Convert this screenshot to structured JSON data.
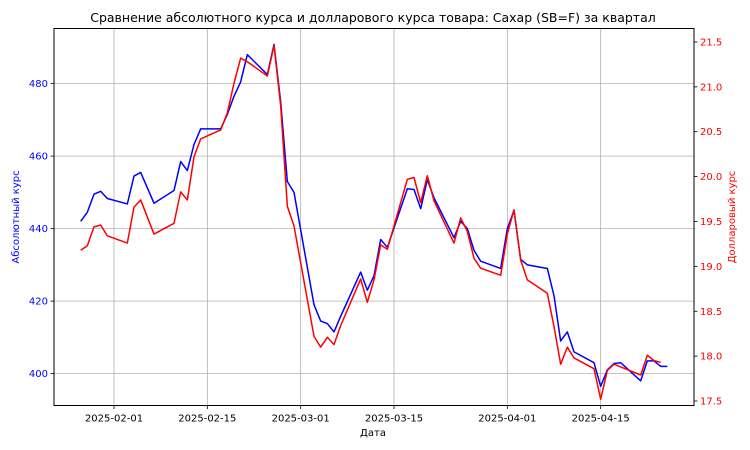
{
  "chart_data": {
    "type": "line",
    "title": "Сравнение абсолютного курса и долларового курса товара: Сахар (SB=F) за квартал",
    "xlabel": "Дата",
    "ylabel_left": "Абсолютный курс",
    "ylabel_right": "Долларовый курс",
    "x_ticks": [
      "2025-02-01",
      "2025-02-15",
      "2025-03-01",
      "2025-03-15",
      "2025-04-01",
      "2025-04-15"
    ],
    "y_left_ticks": [
      400,
      420,
      440,
      460,
      480
    ],
    "y_right_ticks": [
      17.5,
      18.0,
      18.5,
      19.0,
      19.5,
      20.0,
      20.5,
      21.0,
      21.5
    ],
    "x_range": [
      "2025-01-23",
      "2025-04-29"
    ],
    "ylim_left": [
      391.2,
      495.2
    ],
    "ylim_right": [
      17.45,
      21.65
    ],
    "grid": true,
    "legend": "none",
    "colors": {
      "left": "#0000ff",
      "right": "#ff0000"
    },
    "series": [
      {
        "axis": "left",
        "color": "#0000ff",
        "points": [
          [
            "2025-01-27",
            442
          ],
          [
            "2025-01-28",
            444.5
          ],
          [
            "2025-01-29",
            449.5
          ],
          [
            "2025-01-30",
            450.3
          ],
          [
            "2025-01-31",
            448.3
          ],
          [
            "2025-02-03",
            446.8
          ],
          [
            "2025-02-04",
            454.5
          ],
          [
            "2025-02-05",
            455.5
          ],
          [
            "2025-02-07",
            447
          ],
          [
            "2025-02-10",
            450.5
          ],
          [
            "2025-02-11",
            458.5
          ],
          [
            "2025-02-12",
            456
          ],
          [
            "2025-02-13",
            463.2
          ],
          [
            "2025-02-14",
            467.5
          ],
          [
            "2025-02-17",
            467.5
          ],
          [
            "2025-02-18",
            471.5
          ],
          [
            "2025-02-19",
            476.5
          ],
          [
            "2025-02-20",
            480.5
          ],
          [
            "2025-02-21",
            488
          ],
          [
            "2025-02-24",
            482.5
          ],
          [
            "2025-02-25",
            490.8
          ],
          [
            "2025-02-26",
            475
          ],
          [
            "2025-02-27",
            453
          ],
          [
            "2025-02-28",
            450
          ],
          [
            "2025-03-03",
            419
          ],
          [
            "2025-03-04",
            414.5
          ],
          [
            "2025-03-05",
            413.8
          ],
          [
            "2025-03-06",
            411.5
          ],
          [
            "2025-03-07",
            415.8
          ],
          [
            "2025-03-10",
            428
          ],
          [
            "2025-03-11",
            423
          ],
          [
            "2025-03-12",
            427
          ],
          [
            "2025-03-13",
            437
          ],
          [
            "2025-03-14",
            434.8
          ],
          [
            "2025-03-17",
            451
          ],
          [
            "2025-03-18",
            450.8
          ],
          [
            "2025-03-19",
            445.5
          ],
          [
            "2025-03-20",
            453.5
          ],
          [
            "2025-03-21",
            448.5
          ],
          [
            "2025-03-24",
            437.5
          ],
          [
            "2025-03-25",
            442
          ],
          [
            "2025-03-26",
            440
          ],
          [
            "2025-03-27",
            434
          ],
          [
            "2025-03-28",
            431
          ],
          [
            "2025-03-31",
            429
          ],
          [
            "2025-04-01",
            440
          ],
          [
            "2025-04-02",
            445
          ],
          [
            "2025-04-03",
            431.5
          ],
          [
            "2025-04-04",
            430
          ],
          [
            "2025-04-07",
            429
          ],
          [
            "2025-04-08",
            421.5
          ],
          [
            "2025-04-09",
            409
          ],
          [
            "2025-04-10",
            411.5
          ],
          [
            "2025-04-11",
            406
          ],
          [
            "2025-04-14",
            403
          ],
          [
            "2025-04-15",
            396.5
          ],
          [
            "2025-04-16",
            401
          ],
          [
            "2025-04-17",
            402.8
          ],
          [
            "2025-04-18",
            403
          ],
          [
            "2025-04-21",
            398
          ],
          [
            "2025-04-22",
            403.5
          ],
          [
            "2025-04-23",
            403.5
          ],
          [
            "2025-04-24",
            402
          ],
          [
            "2025-04-25",
            402
          ]
        ]
      },
      {
        "axis": "right",
        "color": "#ff0000",
        "points": [
          [
            "2025-01-27",
            19.18
          ],
          [
            "2025-01-28",
            19.23
          ],
          [
            "2025-01-29",
            19.44
          ],
          [
            "2025-01-30",
            19.46
          ],
          [
            "2025-01-31",
            19.34
          ],
          [
            "2025-02-03",
            19.26
          ],
          [
            "2025-02-04",
            19.66
          ],
          [
            "2025-02-05",
            19.74
          ],
          [
            "2025-02-07",
            19.36
          ],
          [
            "2025-02-10",
            19.48
          ],
          [
            "2025-02-11",
            19.83
          ],
          [
            "2025-02-12",
            19.74
          ],
          [
            "2025-02-13",
            20.22
          ],
          [
            "2025-02-14",
            20.42
          ],
          [
            "2025-02-17",
            20.52
          ],
          [
            "2025-02-18",
            20.71
          ],
          [
            "2025-02-19",
            21.04
          ],
          [
            "2025-02-20",
            21.32
          ],
          [
            "2025-02-21",
            21.28
          ],
          [
            "2025-02-24",
            21.12
          ],
          [
            "2025-02-25",
            21.46
          ],
          [
            "2025-02-26",
            20.79
          ],
          [
            "2025-02-27",
            19.67
          ],
          [
            "2025-02-28",
            19.45
          ],
          [
            "2025-03-03",
            18.22
          ],
          [
            "2025-03-04",
            18.1
          ],
          [
            "2025-03-05",
            18.21
          ],
          [
            "2025-03-06",
            18.13
          ],
          [
            "2025-03-07",
            18.34
          ],
          [
            "2025-03-10",
            18.86
          ],
          [
            "2025-03-11",
            18.6
          ],
          [
            "2025-03-12",
            18.85
          ],
          [
            "2025-03-13",
            19.24
          ],
          [
            "2025-03-14",
            19.19
          ],
          [
            "2025-03-17",
            19.97
          ],
          [
            "2025-03-18",
            19.99
          ],
          [
            "2025-03-19",
            19.71
          ],
          [
            "2025-03-20",
            20.01
          ],
          [
            "2025-03-21",
            19.73
          ],
          [
            "2025-03-24",
            19.26
          ],
          [
            "2025-03-25",
            19.54
          ],
          [
            "2025-03-26",
            19.39
          ],
          [
            "2025-03-27",
            19.09
          ],
          [
            "2025-03-28",
            18.98
          ],
          [
            "2025-03-31",
            18.9
          ],
          [
            "2025-04-01",
            19.36
          ],
          [
            "2025-04-02",
            19.63
          ],
          [
            "2025-04-03",
            19.07
          ],
          [
            "2025-04-04",
            18.85
          ],
          [
            "2025-04-07",
            18.7
          ],
          [
            "2025-04-08",
            18.33
          ],
          [
            "2025-04-09",
            17.91
          ],
          [
            "2025-04-10",
            18.1
          ],
          [
            "2025-04-11",
            17.98
          ],
          [
            "2025-04-14",
            17.86
          ],
          [
            "2025-04-15",
            17.52
          ],
          [
            "2025-04-16",
            17.84
          ],
          [
            "2025-04-17",
            17.91
          ],
          [
            "2025-04-18",
            17.88
          ],
          [
            "2025-04-21",
            17.79
          ],
          [
            "2025-04-22",
            18.01
          ],
          [
            "2025-04-23",
            17.95
          ],
          [
            "2025-04-24",
            17.93
          ]
        ]
      }
    ]
  }
}
